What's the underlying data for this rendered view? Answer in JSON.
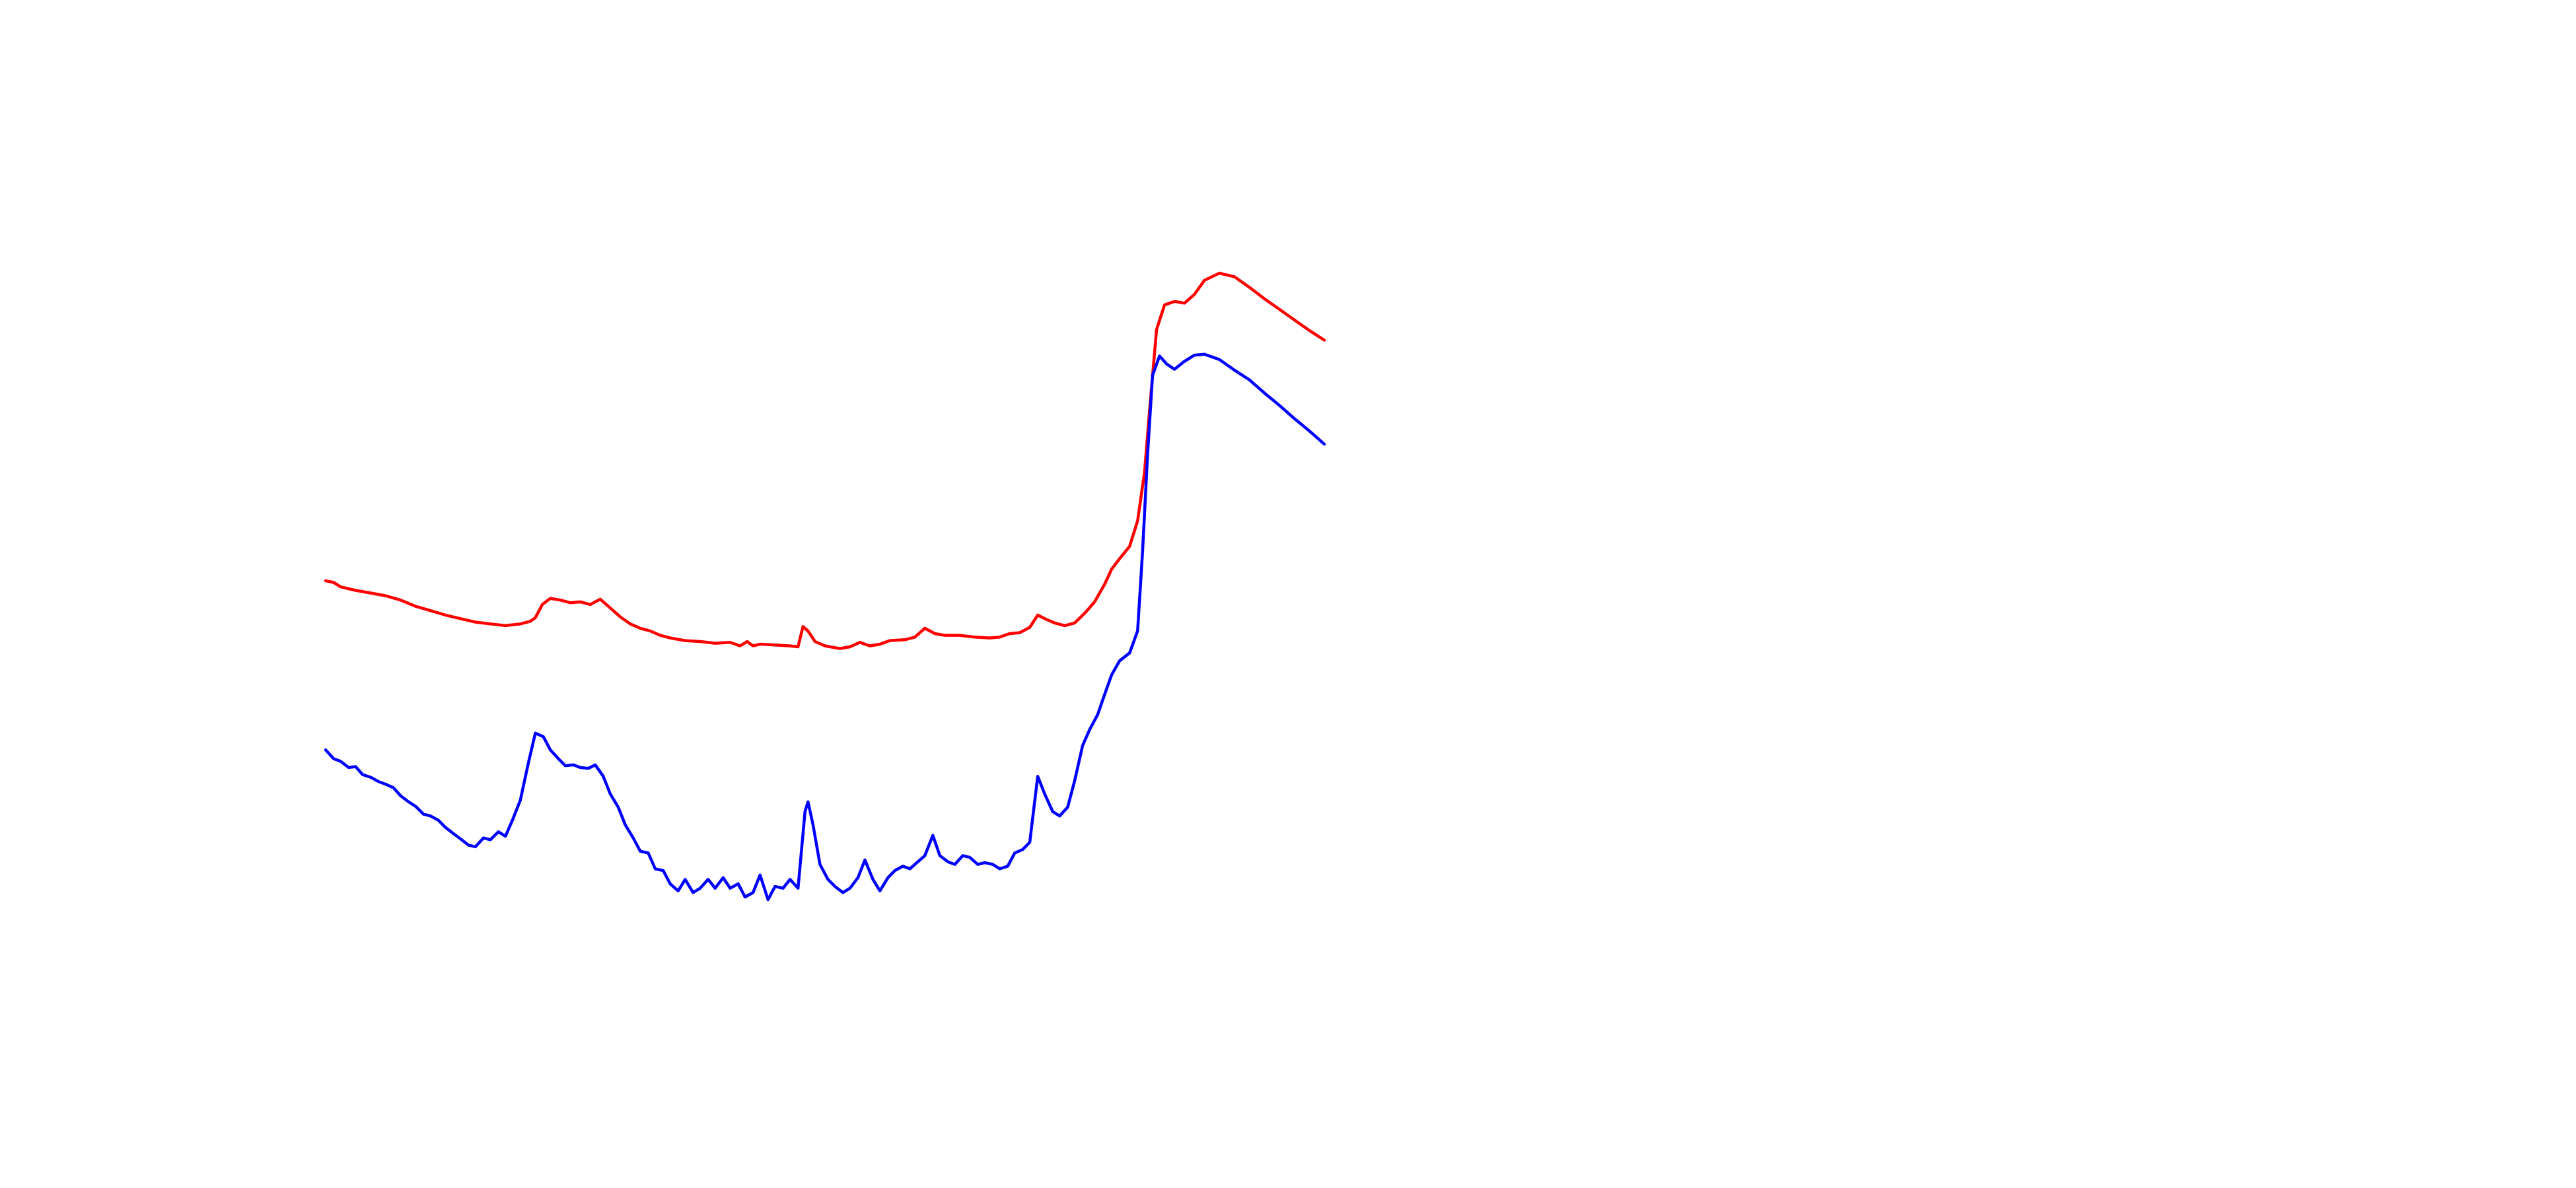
{
  "chart_data": {
    "type": "line",
    "title": "",
    "xlabel": "",
    "ylabel": "",
    "grid": false,
    "legend": "none",
    "xlim": [
      0,
      100
    ],
    "ylim": [
      0,
      100
    ],
    "series": [
      {
        "color": "#ff0000",
        "points": [
          [
            0,
            48.7
          ],
          [
            0.8,
            48.5
          ],
          [
            1.5,
            48.0
          ],
          [
            3,
            47.6
          ],
          [
            4.5,
            47.3
          ],
          [
            6,
            47.0
          ],
          [
            7.5,
            46.5
          ],
          [
            9,
            45.8
          ],
          [
            10.5,
            45.3
          ],
          [
            12,
            44.8
          ],
          [
            13.5,
            44.4
          ],
          [
            15,
            44.0
          ],
          [
            16.5,
            43.8
          ],
          [
            18,
            43.6
          ],
          [
            19.5,
            43.8
          ],
          [
            20.5,
            44.1
          ],
          [
            21,
            44.5
          ],
          [
            21.7,
            46.0
          ],
          [
            22.5,
            46.7
          ],
          [
            23.5,
            46.5
          ],
          [
            24.5,
            46.2
          ],
          [
            25.5,
            46.3
          ],
          [
            26.5,
            46.0
          ],
          [
            27.5,
            46.6
          ],
          [
            28.5,
            45.6
          ],
          [
            29.5,
            44.6
          ],
          [
            30.5,
            43.8
          ],
          [
            31.5,
            43.3
          ],
          [
            32.5,
            43.0
          ],
          [
            33.5,
            42.5
          ],
          [
            34.5,
            42.2
          ],
          [
            36,
            41.9
          ],
          [
            37.5,
            41.8
          ],
          [
            39,
            41.6
          ],
          [
            40.5,
            41.7
          ],
          [
            41.5,
            41.3
          ],
          [
            42.2,
            41.8
          ],
          [
            42.8,
            41.3
          ],
          [
            43.5,
            41.5
          ],
          [
            45,
            41.4
          ],
          [
            46.5,
            41.3
          ],
          [
            47.3,
            41.2
          ],
          [
            47.8,
            43.5
          ],
          [
            48.3,
            43.0
          ],
          [
            49,
            41.8
          ],
          [
            50,
            41.3
          ],
          [
            51.5,
            41.0
          ],
          [
            52.5,
            41.2
          ],
          [
            53.5,
            41.7
          ],
          [
            54.5,
            41.3
          ],
          [
            55.5,
            41.5
          ],
          [
            56.5,
            41.9
          ],
          [
            58,
            42.0
          ],
          [
            59,
            42.3
          ],
          [
            60,
            43.3
          ],
          [
            61,
            42.7
          ],
          [
            62,
            42.5
          ],
          [
            63.5,
            42.5
          ],
          [
            65,
            42.3
          ],
          [
            66.5,
            42.2
          ],
          [
            67.5,
            42.3
          ],
          [
            68.5,
            42.7
          ],
          [
            69.5,
            42.8
          ],
          [
            70.5,
            43.4
          ],
          [
            71.3,
            44.8
          ],
          [
            72,
            44.4
          ],
          [
            73,
            43.9
          ],
          [
            74,
            43.6
          ],
          [
            75,
            43.9
          ],
          [
            76,
            45.0
          ],
          [
            77,
            46.3
          ],
          [
            78,
            48.3
          ],
          [
            78.7,
            50.0
          ],
          [
            79.5,
            51.2
          ],
          [
            80.5,
            52.6
          ],
          [
            81.3,
            55.5
          ],
          [
            82,
            61.0
          ],
          [
            82.5,
            68.0
          ],
          [
            83.2,
            77.2
          ],
          [
            84,
            80.0
          ],
          [
            85,
            80.4
          ],
          [
            86,
            80.2
          ],
          [
            87,
            81.2
          ],
          [
            88,
            82.8
          ],
          [
            89.5,
            83.6
          ],
          [
            91,
            83.2
          ],
          [
            92.5,
            82.0
          ],
          [
            94,
            80.7
          ],
          [
            95.5,
            79.5
          ],
          [
            97,
            78.3
          ],
          [
            98.5,
            77.1
          ],
          [
            100,
            76.0
          ]
        ]
      },
      {
        "color": "#0000ff",
        "points": [
          [
            0,
            29.5
          ],
          [
            0.8,
            28.5
          ],
          [
            1.5,
            28.2
          ],
          [
            2.3,
            27.5
          ],
          [
            3,
            27.6
          ],
          [
            3.7,
            26.7
          ],
          [
            4.5,
            26.4
          ],
          [
            5.3,
            25.9
          ],
          [
            6,
            25.6
          ],
          [
            6.8,
            25.2
          ],
          [
            7.5,
            24.3
          ],
          [
            8.3,
            23.6
          ],
          [
            9,
            23.1
          ],
          [
            9.8,
            22.2
          ],
          [
            10.5,
            22.0
          ],
          [
            11.3,
            21.5
          ],
          [
            12,
            20.7
          ],
          [
            12.8,
            20.0
          ],
          [
            13.5,
            19.4
          ],
          [
            14.3,
            18.7
          ],
          [
            15,
            18.5
          ],
          [
            15.8,
            19.5
          ],
          [
            16.5,
            19.3
          ],
          [
            17.3,
            20.2
          ],
          [
            18,
            19.7
          ],
          [
            18.7,
            21.5
          ],
          [
            19.5,
            23.8
          ],
          [
            20.3,
            28.0
          ],
          [
            21,
            31.4
          ],
          [
            21.8,
            31.0
          ],
          [
            22.5,
            29.5
          ],
          [
            23.3,
            28.5
          ],
          [
            24,
            27.7
          ],
          [
            24.8,
            27.8
          ],
          [
            25.5,
            27.5
          ],
          [
            26.3,
            27.4
          ],
          [
            27,
            27.8
          ],
          [
            27.8,
            26.5
          ],
          [
            28.5,
            24.5
          ],
          [
            29.3,
            23.0
          ],
          [
            30,
            21.0
          ],
          [
            30.8,
            19.5
          ],
          [
            31.5,
            18.0
          ],
          [
            32.3,
            17.8
          ],
          [
            33,
            16.0
          ],
          [
            33.8,
            15.8
          ],
          [
            34.5,
            14.3
          ],
          [
            35.3,
            13.5
          ],
          [
            36,
            14.8
          ],
          [
            36.8,
            13.3
          ],
          [
            37.5,
            13.8
          ],
          [
            38.3,
            14.8
          ],
          [
            39,
            13.8
          ],
          [
            39.8,
            15.0
          ],
          [
            40.5,
            13.8
          ],
          [
            41.3,
            14.3
          ],
          [
            42,
            12.8
          ],
          [
            42.8,
            13.3
          ],
          [
            43.5,
            15.3
          ],
          [
            44.3,
            12.5
          ],
          [
            45,
            14.0
          ],
          [
            45.8,
            13.8
          ],
          [
            46.5,
            14.8
          ],
          [
            47.3,
            13.8
          ],
          [
            48,
            22.5
          ],
          [
            48.3,
            23.6
          ],
          [
            48.8,
            21.0
          ],
          [
            49.5,
            16.5
          ],
          [
            50.3,
            14.8
          ],
          [
            51,
            14.0
          ],
          [
            51.8,
            13.3
          ],
          [
            52.5,
            13.8
          ],
          [
            53.3,
            15.0
          ],
          [
            54,
            17.0
          ],
          [
            54.8,
            14.8
          ],
          [
            55.5,
            13.5
          ],
          [
            56.3,
            15.0
          ],
          [
            57,
            15.8
          ],
          [
            57.8,
            16.3
          ],
          [
            58.5,
            16.0
          ],
          [
            59.3,
            16.8
          ],
          [
            60,
            17.5
          ],
          [
            60.8,
            19.8
          ],
          [
            61.5,
            17.5
          ],
          [
            62.3,
            16.8
          ],
          [
            63,
            16.5
          ],
          [
            63.8,
            17.5
          ],
          [
            64.5,
            17.3
          ],
          [
            65.3,
            16.5
          ],
          [
            66,
            16.7
          ],
          [
            66.8,
            16.5
          ],
          [
            67.5,
            16.0
          ],
          [
            68.3,
            16.3
          ],
          [
            69,
            17.8
          ],
          [
            69.8,
            18.2
          ],
          [
            70.5,
            19.0
          ],
          [
            71.3,
            26.5
          ],
          [
            72,
            24.5
          ],
          [
            72.8,
            22.5
          ],
          [
            73.5,
            22.0
          ],
          [
            74.3,
            23.0
          ],
          [
            75,
            26.0
          ],
          [
            75.8,
            30.0
          ],
          [
            76.5,
            31.8
          ],
          [
            77.3,
            33.5
          ],
          [
            78,
            35.8
          ],
          [
            78.7,
            38.0
          ],
          [
            79.5,
            39.6
          ],
          [
            80.5,
            40.5
          ],
          [
            81.3,
            43.0
          ],
          [
            81.8,
            52.0
          ],
          [
            82.3,
            63.0
          ],
          [
            82.8,
            72.0
          ],
          [
            83.5,
            74.2
          ],
          [
            84.2,
            73.3
          ],
          [
            85,
            72.7
          ],
          [
            86,
            73.6
          ],
          [
            87,
            74.3
          ],
          [
            88,
            74.4
          ],
          [
            89.5,
            73.8
          ],
          [
            91,
            72.6
          ],
          [
            92.5,
            71.5
          ],
          [
            94,
            70.0
          ],
          [
            95.5,
            68.6
          ],
          [
            97,
            67.1
          ],
          [
            98.5,
            65.7
          ],
          [
            100,
            64.2
          ]
        ]
      }
    ]
  }
}
